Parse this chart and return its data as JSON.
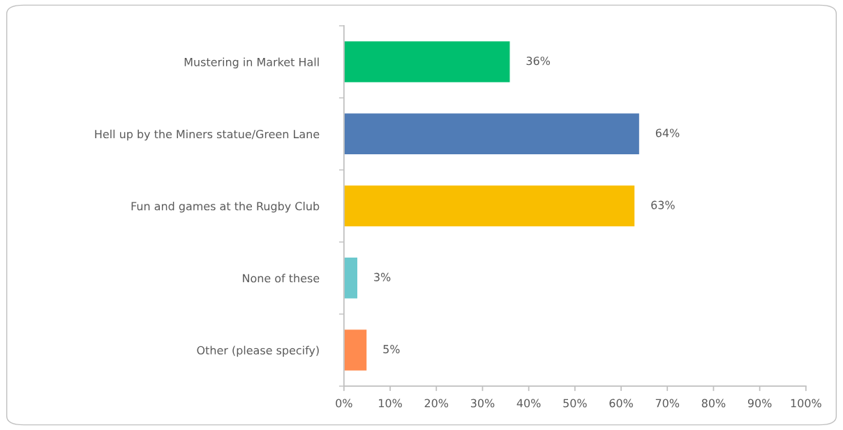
{
  "chart_data": {
    "type": "bar",
    "orientation": "horizontal",
    "categories": [
      "Mustering in Market Hall",
      "Hell up by the Miners statue/Green Lane",
      "Fun and games at the Rugby Club",
      "None of these",
      "Other (please specify)"
    ],
    "values": [
      36,
      64,
      63,
      3,
      5
    ],
    "colors": [
      "#00bf6f",
      "#507cb6",
      "#f9be00",
      "#6bc8cd",
      "#ff8b4f"
    ],
    "xlim": [
      0,
      100
    ],
    "xticks": [
      {
        "value": 0,
        "label": "0%"
      },
      {
        "value": 10,
        "label": "10%"
      },
      {
        "value": 20,
        "label": "20%"
      },
      {
        "value": 30,
        "label": "30%"
      },
      {
        "value": 40,
        "label": "40%"
      },
      {
        "value": 50,
        "label": "50%"
      },
      {
        "value": 60,
        "label": "60%"
      },
      {
        "value": 70,
        "label": "70%"
      },
      {
        "value": 80,
        "label": "80%"
      },
      {
        "value": 90,
        "label": "90%"
      },
      {
        "value": 100,
        "label": "100%"
      }
    ],
    "value_labels": [
      "36%",
      "64%",
      "63%",
      "3%",
      "5%"
    ],
    "grid": false,
    "legend": false
  }
}
